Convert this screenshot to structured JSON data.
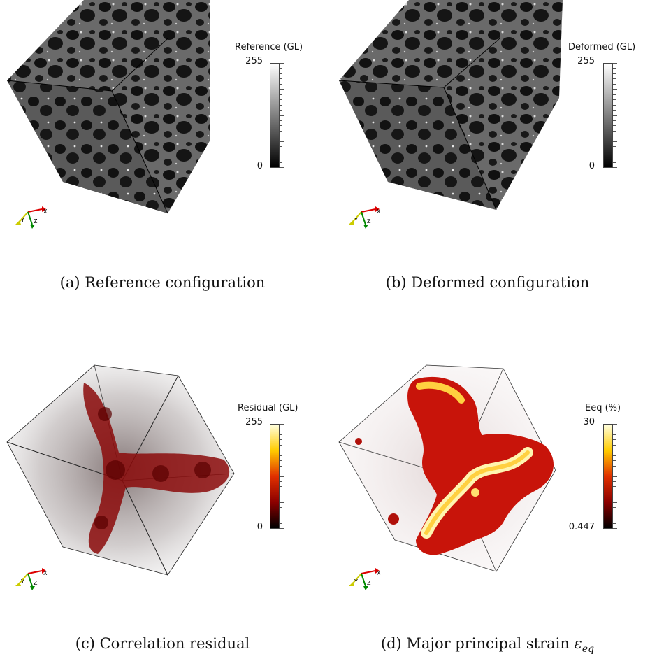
{
  "panels": [
    {
      "id": "a",
      "colorbar": {
        "title": "Reference (GL)",
        "max_label": "255",
        "min_label": "0",
        "colormap": "gray",
        "colors": [
          "#000000",
          "#ffffff"
        ]
      },
      "caption": "(a)  Reference configuration"
    },
    {
      "id": "b",
      "colorbar": {
        "title": "Deformed (GL)",
        "max_label": "255",
        "min_label": "0",
        "colormap": "gray",
        "colors": [
          "#000000",
          "#ffffff"
        ]
      },
      "caption": "(b)  Deformed configuration"
    },
    {
      "id": "c",
      "colorbar": {
        "title": "Residual (GL)",
        "max_label": "255",
        "min_label": "0",
        "colormap": "black-body",
        "colors": [
          "#000000",
          "#8b0000",
          "#e03000",
          "#ffcc00",
          "#ffffe0"
        ]
      },
      "caption": "(c)  Correlation residual"
    },
    {
      "id": "d",
      "colorbar": {
        "title": "Eeq (%)",
        "max_label": "30",
        "min_label": "0.447",
        "colormap": "black-body",
        "colors": [
          "#000000",
          "#8b0000",
          "#e03000",
          "#ffcc00",
          "#ffffe0"
        ]
      },
      "caption": "(d)  Major principal strain ",
      "caption_symbol": "ε",
      "caption_subscript": "eq"
    }
  ],
  "axes_labels": {
    "x": "X",
    "y": "Y",
    "z": "Z"
  }
}
